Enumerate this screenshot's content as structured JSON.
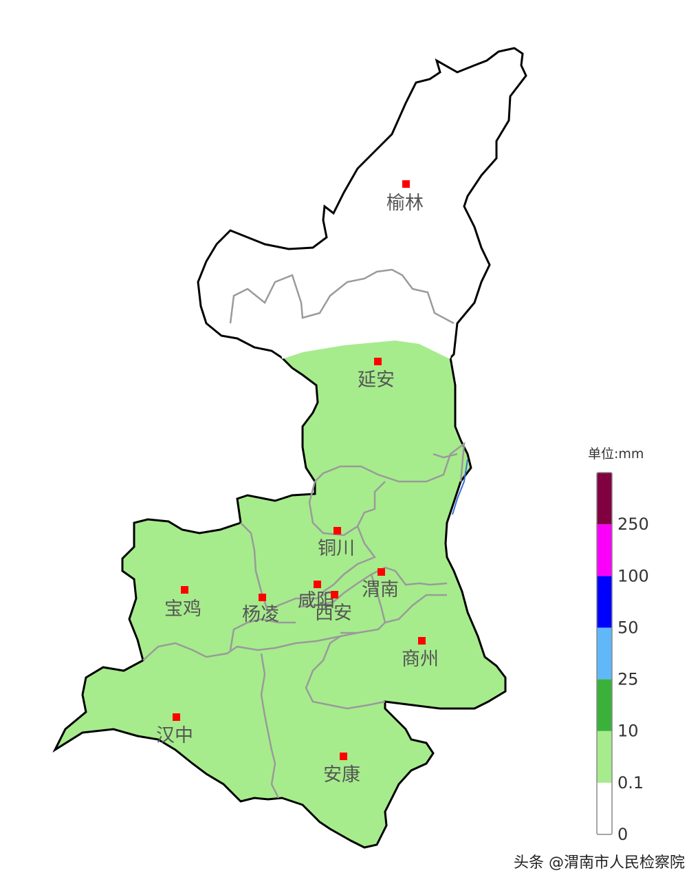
{
  "legend": {
    "title": "单位:mm",
    "classes": [
      {
        "label": "0",
        "color": "#ffffff"
      },
      {
        "label": "0.1",
        "color": "#a6ec8c"
      },
      {
        "label": "10",
        "color": "#3ab23a"
      },
      {
        "label": "25",
        "color": "#60b8f8"
      },
      {
        "label": "50",
        "color": "#0000fe"
      },
      {
        "label": "100",
        "color": "#fa00fa"
      },
      {
        "label": "250",
        "color": "#800040"
      }
    ]
  },
  "cities": {
    "yulin": "榆林",
    "yanan": "延安",
    "tongchuan": "铜川",
    "weinan": "渭南",
    "xianyang": "咸阳",
    "xian": "西安",
    "yangling": "杨凌",
    "baoji": "宝鸡",
    "shangzhou": "商州",
    "hanzhong": "汉中",
    "ankang": "安康"
  },
  "colors": {
    "rain_fill": "#a6ec8c",
    "marker": "#ff0000",
    "border": "#000000",
    "district_line": "#999999"
  },
  "watermark": "头条 @渭南市人民检察院"
}
